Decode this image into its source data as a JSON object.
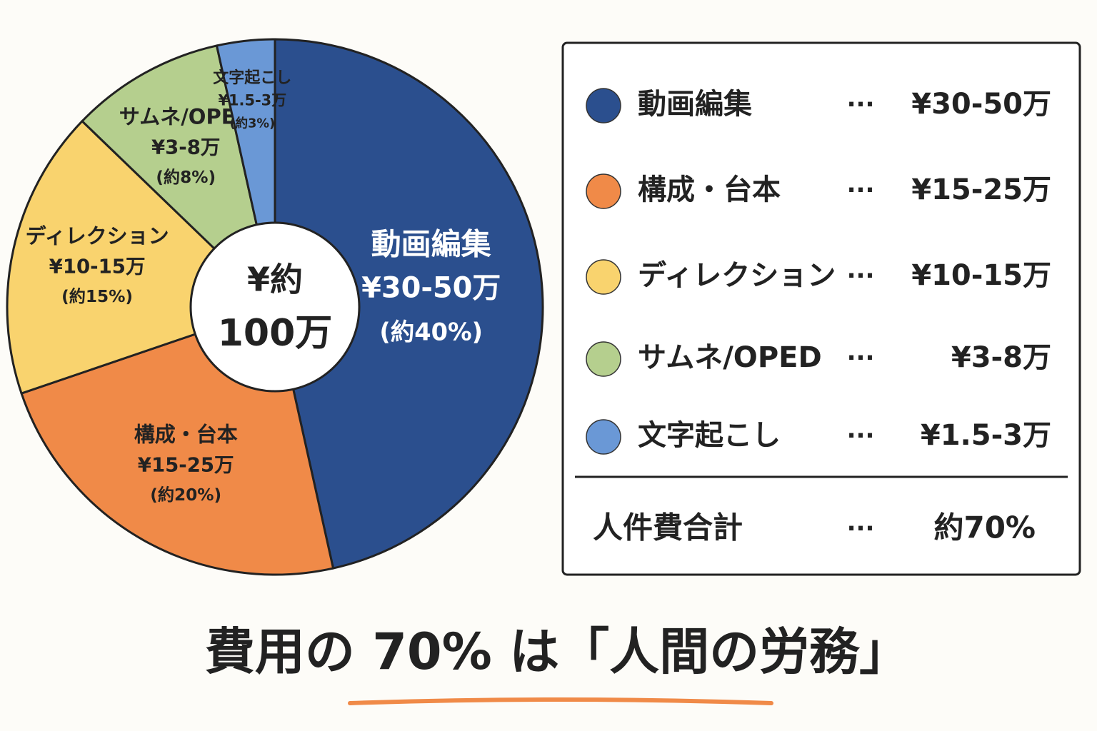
{
  "chart_data": {
    "type": "pie",
    "title": "費用の 70% は「人間の労務」",
    "center_label": [
      "¥約",
      "100万"
    ],
    "categories": [
      "動画編集",
      "構成・台本",
      "ディレクション",
      "サムネ/OPED",
      "文字起こし"
    ],
    "values": [
      40,
      20,
      15,
      8,
      3
    ],
    "value_labels": [
      "(約40%)",
      "(約20%)",
      "(約15%)",
      "(約8%)",
      "(約3%)"
    ],
    "amounts": [
      "¥30-50万",
      "¥15-25万",
      "¥10-15万",
      "¥3-8万",
      "¥1.5-3万"
    ],
    "colors": [
      "#2b4f8e",
      "#f08a48",
      "#f9d36e",
      "#b5cf8e",
      "#6a98d6"
    ],
    "legend_separator": "···",
    "total_label": "人件費合計",
    "total_text": "約70%"
  }
}
